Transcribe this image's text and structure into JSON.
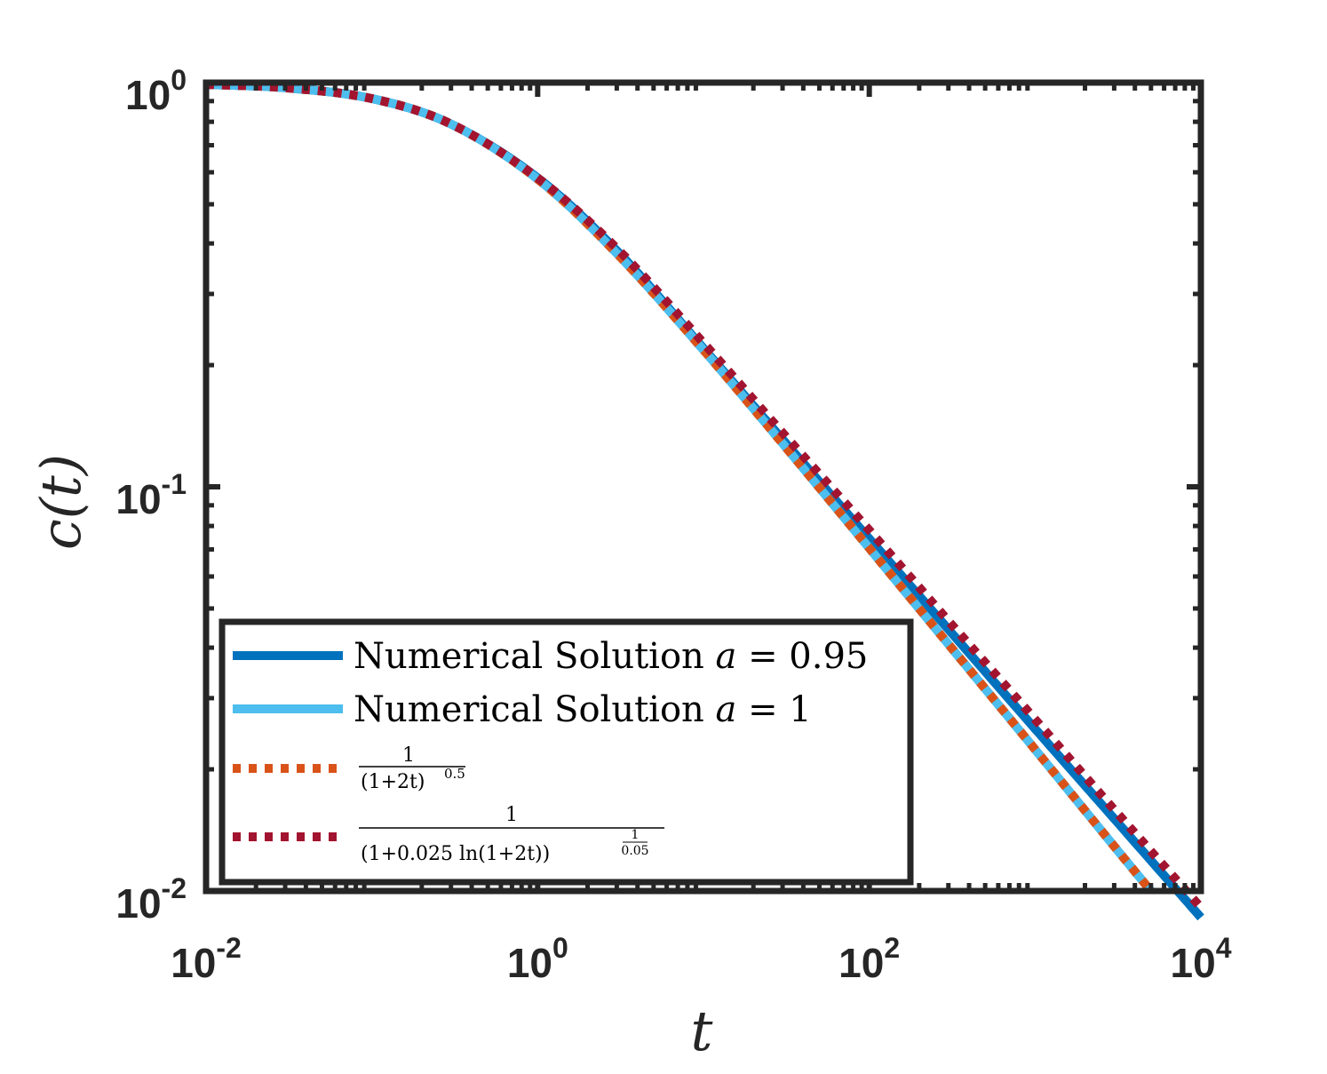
{
  "chart_data": {
    "type": "line",
    "xscale": "log",
    "yscale": "log",
    "xlim": [
      0.01,
      10000
    ],
    "ylim": [
      0.01,
      1
    ],
    "xlabel": "t",
    "ylabel": "c(t)",
    "x_ticks": [
      {
        "value": 0.01,
        "base": "10",
        "exp": "-2"
      },
      {
        "value": 1,
        "base": "10",
        "exp": "0"
      },
      {
        "value": 100,
        "base": "10",
        "exp": "2"
      },
      {
        "value": 10000,
        "base": "10",
        "exp": "4"
      }
    ],
    "y_ticks": [
      {
        "value": 0.01,
        "base": "10",
        "exp": "-2"
      },
      {
        "value": 0.1,
        "base": "10",
        "exp": "-1"
      },
      {
        "value": 1,
        "base": "10",
        "exp": "0"
      }
    ],
    "grid": false,
    "legend_position": "bottom-left",
    "series": [
      {
        "name": "Numerical Solution a = 0.95",
        "legend": {
          "pre": "Numerical Solution ",
          "var": "a",
          "post": " = 0.95"
        },
        "color": "#0072BD",
        "style": "solid",
        "x": [
          0.01,
          0.03,
          0.1,
          0.3,
          1,
          3,
          10,
          30,
          100,
          300,
          1000,
          3000,
          10000
        ],
        "y": [
          0.99,
          0.971,
          0.913,
          0.79,
          0.581,
          0.384,
          0.22,
          0.131,
          0.0744,
          0.0444,
          0.0252,
          0.0151,
          0.0086
        ]
      },
      {
        "name": "Numerical Solution a = 1",
        "legend": {
          "pre": "Numerical Solution ",
          "var": "a",
          "post": " = 1"
        },
        "color": "#4DBEEE",
        "style": "solid",
        "x": [
          0.01,
          0.03,
          0.1,
          0.3,
          1,
          3,
          10,
          30,
          100,
          300,
          1000,
          3000,
          5000
        ],
        "y": [
          0.99,
          0.971,
          0.913,
          0.79,
          0.577,
          0.378,
          0.218,
          0.128,
          0.0705,
          0.0408,
          0.0224,
          0.0129,
          0.01
        ]
      },
      {
        "name": "1/(1+2t)^0.5",
        "legend": {
          "num": "1",
          "den": "(1+2t)",
          "den_exp": "0.5"
        },
        "color": "#D95319",
        "style": "dotted",
        "x": [
          0.01,
          0.03,
          0.1,
          0.3,
          1,
          3,
          10,
          30,
          100,
          300,
          1000,
          3000,
          5000
        ],
        "y": [
          0.99,
          0.971,
          0.913,
          0.79,
          0.577,
          0.378,
          0.218,
          0.128,
          0.0705,
          0.0408,
          0.0224,
          0.0129,
          0.01
        ]
      },
      {
        "name": "1/(1+0.025 ln(1+2t))^(1/0.05)",
        "legend": {
          "num": "1",
          "den": "(1+0.025 ln(1+2t))",
          "den_exp_num": "1",
          "den_exp_den": "0.05"
        },
        "color": "#A2142F",
        "style": "dotted",
        "x": [
          0.01,
          0.03,
          0.1,
          0.3,
          1,
          3,
          10,
          30,
          100,
          300,
          1000,
          3000,
          10000
        ],
        "y": [
          0.99,
          0.971,
          0.913,
          0.79,
          0.581,
          0.389,
          0.227,
          0.136,
          0.0781,
          0.0466,
          0.0266,
          0.0159,
          0.0091
        ]
      }
    ]
  }
}
